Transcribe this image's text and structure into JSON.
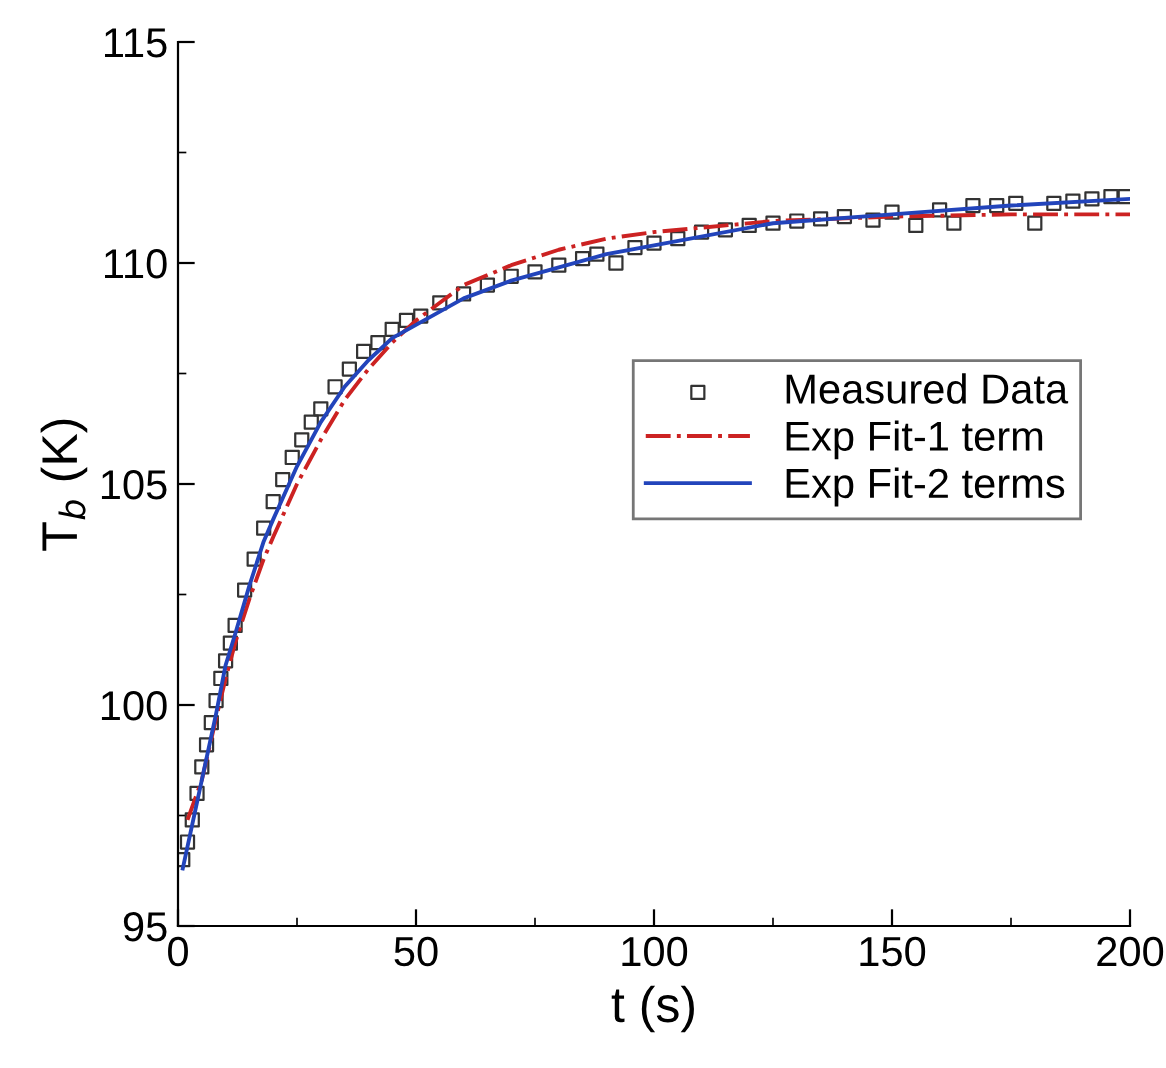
{
  "chart_data": {
    "type": "scatter",
    "xlabel": "t (s)",
    "ylabel": "T$_{b}$ (K)",
    "xlim": [
      0,
      200
    ],
    "ylim": [
      95,
      115
    ],
    "xticks": [
      0,
      50,
      100,
      150,
      200
    ],
    "yticks": [
      95,
      100,
      105,
      110,
      115
    ],
    "grid": false,
    "legend": "right",
    "series": [
      {
        "name": "Measured Data",
        "marker": "square",
        "color": "#333333",
        "x": [
          1,
          2,
          3,
          4,
          5,
          6,
          7,
          8,
          9,
          10,
          11,
          12,
          14,
          16,
          18,
          20,
          22,
          24,
          26,
          28,
          30,
          33,
          36,
          39,
          42,
          45,
          48,
          51,
          55,
          60,
          65,
          70,
          75,
          80,
          85,
          88,
          92,
          96,
          100,
          105,
          110,
          115,
          120,
          125,
          130,
          135,
          140,
          146,
          150,
          155,
          160,
          163,
          167,
          172,
          176,
          180,
          184,
          188,
          192,
          196,
          199
        ],
        "values": [
          96.5,
          96.9,
          97.4,
          98.0,
          98.6,
          99.1,
          99.6,
          100.1,
          100.6,
          101.0,
          101.4,
          101.8,
          102.6,
          103.3,
          104.0,
          104.6,
          105.1,
          105.6,
          106.0,
          106.4,
          106.7,
          107.2,
          107.6,
          108.0,
          108.2,
          108.5,
          108.7,
          108.8,
          109.1,
          109.3,
          109.5,
          109.7,
          109.8,
          109.95,
          110.1,
          110.2,
          110.0,
          110.35,
          110.45,
          110.55,
          110.7,
          110.75,
          110.85,
          110.9,
          110.95,
          111.0,
          111.05,
          110.97,
          111.15,
          110.85,
          111.2,
          110.9,
          111.3,
          111.3,
          111.35,
          110.9,
          111.35,
          111.4,
          111.45,
          111.5,
          111.5
        ]
      },
      {
        "name": "Exp Fit-1 term",
        "type": "line",
        "line_style": "dashdot",
        "marker": "none",
        "color": "#cc2222",
        "x": [
          2,
          5,
          8,
          10,
          12,
          15,
          18,
          20,
          25,
          30,
          35,
          40,
          45,
          50,
          55,
          60,
          70,
          80,
          90,
          100,
          125,
          150,
          175,
          200
        ],
        "values": [
          97.4,
          98.3,
          99.7,
          100.6,
          101.4,
          102.4,
          103.3,
          103.8,
          105.0,
          106.0,
          106.9,
          107.6,
          108.2,
          108.7,
          109.1,
          109.5,
          109.95,
          110.3,
          110.55,
          110.7,
          110.95,
          111.05,
          111.1,
          111.1
        ]
      },
      {
        "name": "Exp Fit-2 terms",
        "type": "line",
        "line_style": "solid",
        "marker": "none",
        "color": "#2244bb",
        "x": [
          1,
          3,
          5,
          8,
          10,
          12,
          15,
          18,
          20,
          25,
          30,
          35,
          40,
          45,
          50,
          55,
          60,
          70,
          80,
          90,
          100,
          125,
          150,
          175,
          200
        ],
        "values": [
          96.3,
          97.3,
          98.3,
          99.8,
          100.9,
          101.6,
          102.7,
          103.7,
          104.2,
          105.4,
          106.4,
          107.2,
          107.8,
          108.3,
          108.6,
          108.9,
          109.2,
          109.6,
          109.9,
          110.2,
          110.4,
          110.9,
          111.1,
          111.3,
          111.45
        ]
      }
    ]
  }
}
